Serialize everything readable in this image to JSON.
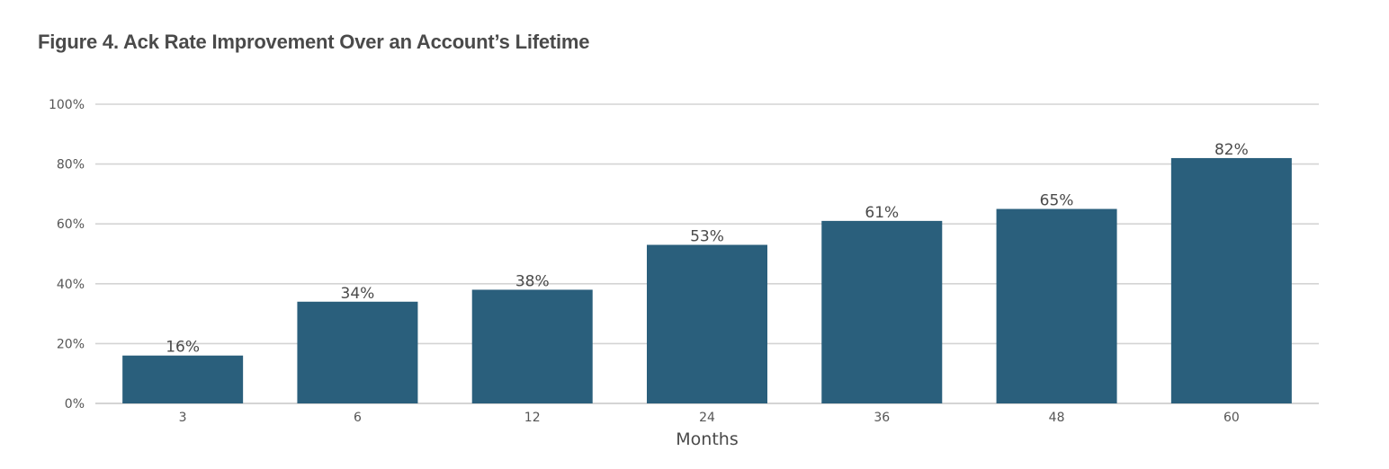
{
  "figure": {
    "title": "Figure 4. Ack Rate Improvement Over an Account’s Lifetime"
  },
  "chart_data": {
    "type": "bar",
    "categories": [
      "3",
      "6",
      "12",
      "24",
      "36",
      "48",
      "60"
    ],
    "values": [
      16,
      34,
      38,
      53,
      61,
      65,
      82
    ],
    "data_labels": [
      "16%",
      "34%",
      "38%",
      "53%",
      "61%",
      "65%",
      "82%"
    ],
    "y_ticks": [
      0,
      20,
      40,
      60,
      80,
      100
    ],
    "y_tick_labels": [
      "0%",
      "20%",
      "40%",
      "60%",
      "80%",
      "100%"
    ],
    "ylim": [
      0,
      100
    ],
    "xlabel": "Months",
    "ylabel": "",
    "grid": true,
    "legend": "none",
    "bar_color": "#2a5f7c",
    "grid_color": "#d4d4d4"
  }
}
